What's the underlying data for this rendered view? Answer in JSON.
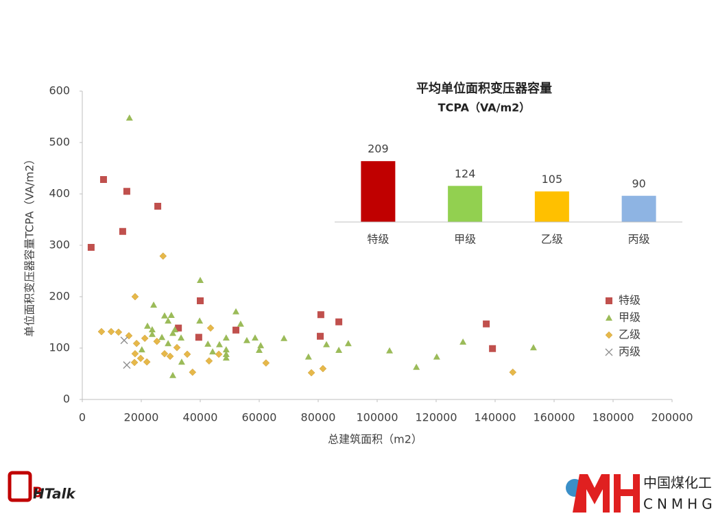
{
  "chart_data": [
    {
      "type": "scatter",
      "xlabel": "总建筑面积（m2）",
      "ylabel": "单位面积变压器容量TCPA（VA/m2）",
      "xlim": [
        0,
        200000
      ],
      "xticks": [
        0,
        20000,
        40000,
        60000,
        80000,
        100000,
        120000,
        140000,
        160000,
        180000,
        200000
      ],
      "ylim": [
        0,
        600
      ],
      "yticks": [
        0,
        100,
        200,
        300,
        400,
        500,
        600
      ],
      "grid": false,
      "legend": "right",
      "series": [
        {
          "name": "特级",
          "color": "#c0504d",
          "marker": "square",
          "x": [
            3000,
            7200,
            15100,
            13700,
            25600,
            40000,
            39500,
            32600,
            52100,
            80900,
            80700,
            87000,
            137000,
            139100
          ],
          "values": [
            296,
            428,
            405,
            327,
            376,
            192,
            121,
            139,
            135,
            165,
            123,
            151,
            147,
            99
          ]
        },
        {
          "name": "甲级",
          "color": "#9bbb59",
          "marker": "triangle",
          "x": [
            16000,
            40000,
            24200,
            27900,
            30200,
            29100,
            39800,
            52100,
            53700,
            22100,
            23700,
            23700,
            31400,
            33500,
            30700,
            29100,
            27000,
            20200,
            42600,
            44200,
            46500,
            48800,
            48800,
            48800,
            48800,
            55800,
            58600,
            60500,
            60000,
            68400,
            76700,
            82800,
            87000,
            90200,
            104200,
            113300,
            120200,
            129100,
            153000,
            33700,
            30700
          ],
          "values": [
            548,
            232,
            184,
            163,
            164,
            153,
            153,
            171,
            147,
            143,
            136,
            127,
            136,
            120,
            129,
            109,
            121,
            97,
            108,
            93,
            107,
            120,
            97,
            88,
            81,
            115,
            120,
            105,
            96,
            119,
            83,
            107,
            96,
            109,
            95,
            63,
            83,
            112,
            101,
            73,
            47
          ]
        },
        {
          "name": "乙级",
          "color": "#e6b84a",
          "marker": "diamond",
          "x": [
            6500,
            9800,
            12300,
            15800,
            27400,
            17900,
            18400,
            21200,
            25300,
            17900,
            19800,
            21900,
            17700,
            27900,
            29800,
            32100,
            35600,
            37400,
            43500,
            43000,
            46300,
            62300,
            77700,
            81600,
            146000
          ],
          "values": [
            132,
            132,
            131,
            124,
            279,
            200,
            109,
            119,
            113,
            89,
            80,
            73,
            72,
            89,
            84,
            101,
            88,
            53,
            139,
            75,
            88,
            71,
            52,
            60,
            53
          ]
        },
        {
          "name": "丙级",
          "color": "#8c8c8c",
          "marker": "x",
          "x": [
            14200,
            15100
          ],
          "values": [
            115,
            67
          ]
        }
      ]
    },
    {
      "type": "bar",
      "title": "平均单位面积变压器容量",
      "subtitle": "TCPA（VA/m2）",
      "categories": [
        "特级",
        "甲级",
        "乙级",
        "丙级"
      ],
      "values": [
        209,
        124,
        105,
        90
      ],
      "colors": [
        "#c00000",
        "#92d050",
        "#ffc000",
        "#8eb4e3"
      ]
    }
  ],
  "branding": {
    "left": "HTalk",
    "left_initial": "B",
    "right_cn": "中国煤化工",
    "right_en": "CNMHG"
  }
}
